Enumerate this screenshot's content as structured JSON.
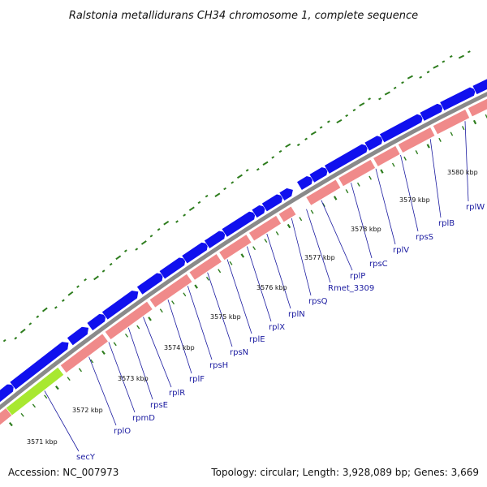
{
  "title": "Ralstonia metallidurans CH34 chromosome 1, complete sequence",
  "footer": {
    "accession": "Accession: NC_007973",
    "summary": "Topology: circular; Length: 3,928,089 bp; Genes: 3,669"
  },
  "colors": {
    "backbone": "#8a8a8a",
    "forward_gene": "#1010ee",
    "reverse_gene": "#f08a8a",
    "highlight_gene": "#a8e830",
    "tick": "#2e7d1e",
    "label_line": "#1a1aa0"
  },
  "kbp_marks": [
    "3571 kbp",
    "3572 kbp",
    "3573 kbp",
    "3574 kbp",
    "3575 kbp",
    "3576 kbp",
    "3577 kbp",
    "3578 kbp",
    "3579 kbp",
    "3580 kbp"
  ],
  "gene_labels": [
    "secY",
    "rplO",
    "rpmD",
    "rpsE",
    "rplR",
    "rplF",
    "rpsH",
    "rpsN",
    "rplE",
    "rplX",
    "rplN",
    "rpsQ",
    "Rmet_3309",
    "rplP",
    "rpsC",
    "rplV",
    "rpsS",
    "rplB",
    "rplW"
  ]
}
